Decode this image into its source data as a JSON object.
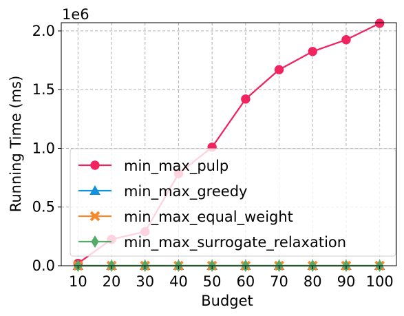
{
  "chart_data": {
    "type": "line",
    "title": "",
    "xlabel": "Budget",
    "ylabel": "Running Time (ms)",
    "y_scale_note": "1e6",
    "x": [
      10,
      20,
      30,
      40,
      50,
      60,
      70,
      80,
      90,
      100
    ],
    "xlim": [
      5,
      105
    ],
    "ylim": [
      0,
      2070000
    ],
    "x_ticks": [
      10,
      20,
      30,
      40,
      50,
      60,
      70,
      80,
      90,
      100
    ],
    "y_ticks": [
      0,
      500000,
      1000000,
      1500000,
      2000000
    ],
    "y_tick_labels": [
      "0.0",
      "0.5",
      "1.0",
      "1.5",
      "2.0"
    ],
    "grid": true,
    "legend_position": "lower-left",
    "series": [
      {
        "name": "min_max_pulp",
        "color": "#f0245f",
        "marker": "circle",
        "values": [
          20000,
          225000,
          290000,
          785000,
          1010000,
          1420000,
          1670000,
          1825000,
          1925000,
          2065000
        ]
      },
      {
        "name": "min_max_greedy",
        "color": "#1493dc",
        "marker": "triangle",
        "values": [
          0,
          0,
          0,
          0,
          0,
          0,
          0,
          0,
          0,
          0
        ]
      },
      {
        "name": "min_max_equal_weight",
        "color": "#f5892b",
        "marker": "x",
        "values": [
          0,
          0,
          0,
          0,
          0,
          0,
          0,
          0,
          0,
          0
        ]
      },
      {
        "name": "min_max_surrogate_relaxation",
        "color": "#55aa68",
        "marker": "diamond",
        "values": [
          0,
          0,
          0,
          0,
          0,
          0,
          0,
          0,
          0,
          0
        ]
      }
    ]
  }
}
